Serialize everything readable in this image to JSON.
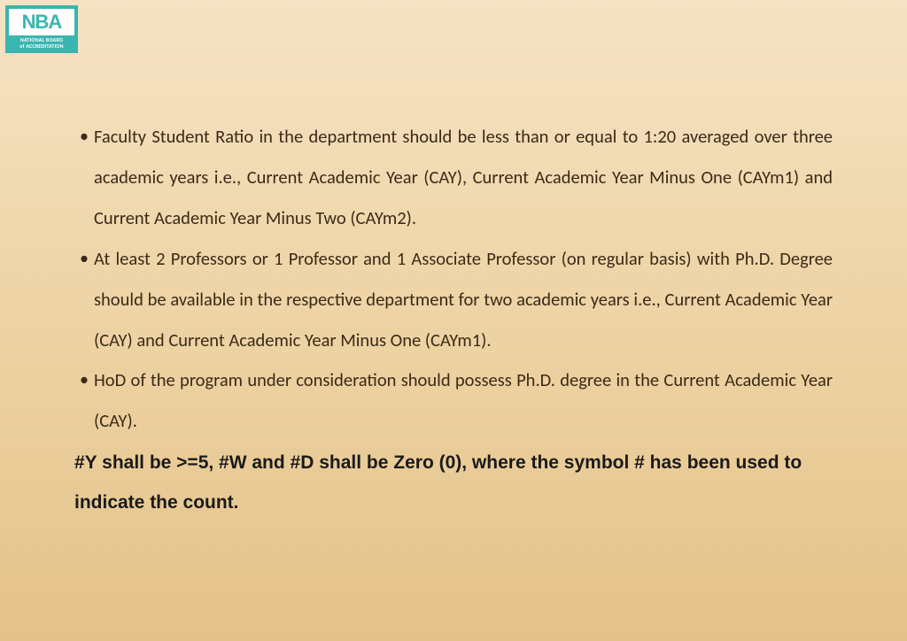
{
  "logo": {
    "main": "NBA",
    "sub1": "NATIONAL BOARD",
    "sub2": "of ACCREDITATION"
  },
  "bullets": [
    "Faculty Student Ratio in the department should be less than or equal to 1:20 averaged over three academic years i.e., Current Academic Year (CAY), Current Academic Year Minus One (CAYm1) and Current Academic Year Minus Two (CAYm2).",
    "At least 2 Professors or 1 Professor and 1 Associate Professor (on regular basis) with Ph.D. Degree should be available in the respective department for two academic years i.e., Current Academic Year (CAY) and Current Academic Year Minus One (CAYm1).",
    "HoD of the program under consideration should possess Ph.D. degree in the Current Academic Year (CAY)."
  ],
  "footer": "#Y shall be >=5, #W and #D shall be Zero (0), where the symbol # has been used to indicate the count.",
  "colors": {
    "logo_bg": "#3bb5b0",
    "text": "#3a2a17",
    "footer_text": "#1a1a1a"
  }
}
